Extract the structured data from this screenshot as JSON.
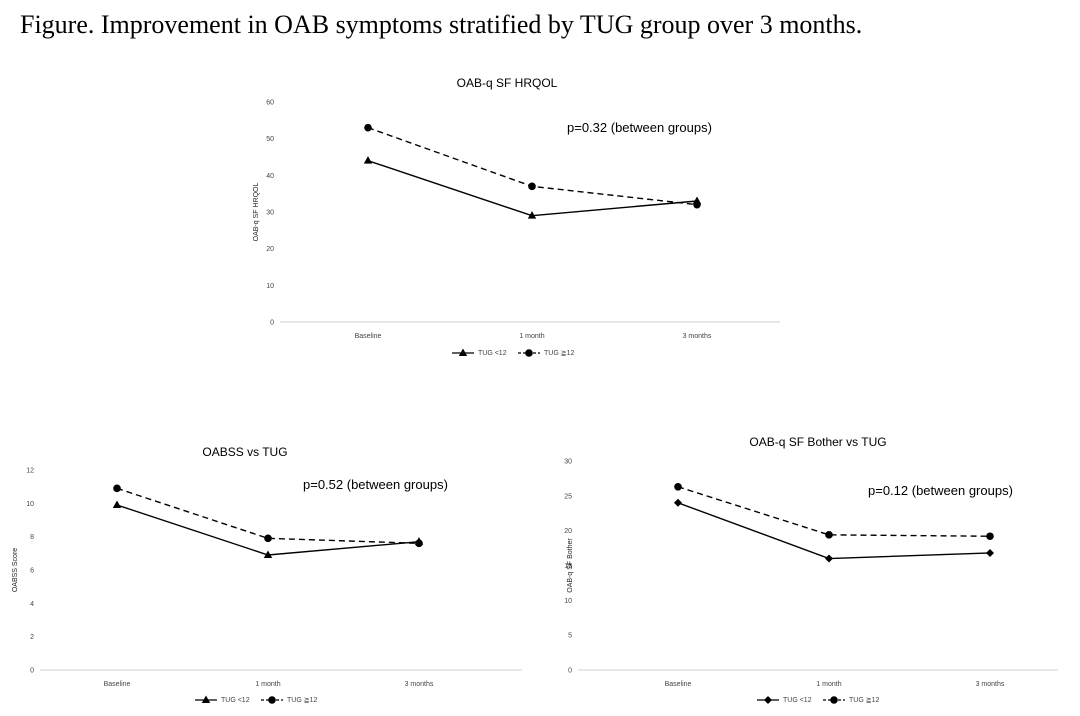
{
  "figure_caption": "Figure.  Improvement in OAB symptoms stratified by TUG group over 3 months.",
  "chart_data": [
    {
      "type": "line",
      "title": "OAB-q SF HRQOL",
      "xlabel": "",
      "ylabel": "OAB-q SF HRQOL",
      "categories": [
        "Baseline",
        "1 month",
        "3 months"
      ],
      "ylim": [
        0,
        60
      ],
      "yticks": [
        0,
        10,
        20,
        30,
        40,
        50,
        60
      ],
      "grid": false,
      "legend_position": "bottom",
      "annotation": "p=0.32 (between groups)",
      "series": [
        {
          "name": "TUG <12",
          "values": [
            44,
            29,
            33
          ],
          "line_style": "solid",
          "marker": "triangle",
          "color": "#000000"
        },
        {
          "name": "TUG ≧12",
          "values": [
            53,
            37,
            32
          ],
          "line_style": "dashed",
          "marker": "circle",
          "color": "#000000"
        }
      ]
    },
    {
      "type": "line",
      "title": "OABSS vs TUG",
      "xlabel": "",
      "ylabel": "OABSS Score",
      "categories": [
        "Baseline",
        "1 month",
        "3 months"
      ],
      "ylim": [
        0,
        12
      ],
      "yticks": [
        0,
        2,
        4,
        6,
        8,
        10,
        12
      ],
      "grid": false,
      "legend_position": "bottom",
      "annotation": "p=0.52 (between groups)",
      "series": [
        {
          "name": "TUG <12",
          "values": [
            9.9,
            6.9,
            7.7
          ],
          "line_style": "solid",
          "marker": "triangle",
          "color": "#000000"
        },
        {
          "name": "TUG ≧12",
          "values": [
            10.9,
            7.9,
            7.6
          ],
          "line_style": "dashed",
          "marker": "circle",
          "color": "#000000"
        }
      ]
    },
    {
      "type": "line",
      "title": "OAB-q SF Bother vs TUG",
      "xlabel": "",
      "ylabel": "OAB-q SF Bother",
      "categories": [
        "Baseline",
        "1 month",
        "3 months"
      ],
      "ylim": [
        0,
        30
      ],
      "yticks": [
        0,
        5,
        10,
        15,
        20,
        25,
        30
      ],
      "grid": false,
      "legend_position": "bottom",
      "annotation": "p=0.12 (between groups)",
      "series": [
        {
          "name": "TUG <12",
          "values": [
            24,
            16,
            16.8
          ],
          "line_style": "solid",
          "marker": "diamond",
          "color": "#000000"
        },
        {
          "name": "TUG ≧12",
          "values": [
            26.3,
            19.4,
            19.2
          ],
          "line_style": "dashed",
          "marker": "circle",
          "color": "#000000"
        }
      ]
    }
  ]
}
